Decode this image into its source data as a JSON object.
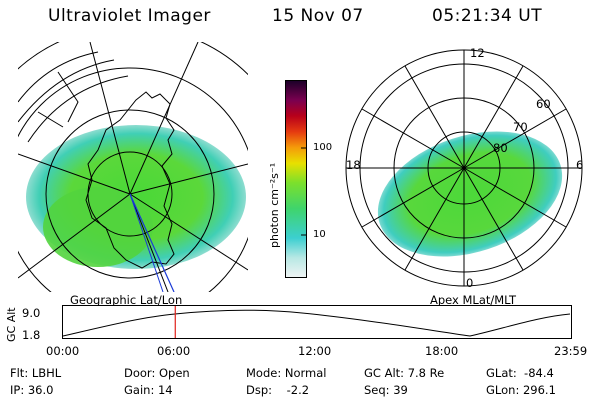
{
  "header": {
    "title": "Ultraviolet Imager",
    "date": "15 Nov 07",
    "time": "05:21:34 UT"
  },
  "colorbar": {
    "unit_label": "photon cm⁻²s⁻¹",
    "ticks": [
      "100",
      "10"
    ]
  },
  "left_panel": {
    "caption": "Geographic Lat/Lon"
  },
  "right_panel": {
    "caption": "Apex MLat/MLT",
    "mlt_labels": [
      "12",
      "18",
      "6",
      "0"
    ],
    "lat_labels": [
      "60",
      "70",
      "80"
    ]
  },
  "orbit_plot": {
    "ylabel": "GC Alt",
    "yticks": [
      "9.0",
      "1.8"
    ],
    "xticks": [
      "00:00",
      "06:00",
      "12:00",
      "18:00",
      "23:59"
    ],
    "current_time_fraction": 0.221
  },
  "info": {
    "flt": "Flt: LBHL",
    "ip": "IP: 36.0",
    "door": "Door: Open",
    "gain": "Gain: 14",
    "mode": "Mode: Normal",
    "dsp": "Dsp:    -2.2",
    "gcalt": "GC Alt: 7.8 Re",
    "seq": "Seq: 39",
    "glat": "GLat:  -84.4",
    "glon": "GLon: 296.1"
  },
  "colors": {
    "aurora_main": "#4ad63a",
    "aurora_edge": "#3fcfc0",
    "faint": "#d8e8e8",
    "marker": "#e0201a"
  }
}
